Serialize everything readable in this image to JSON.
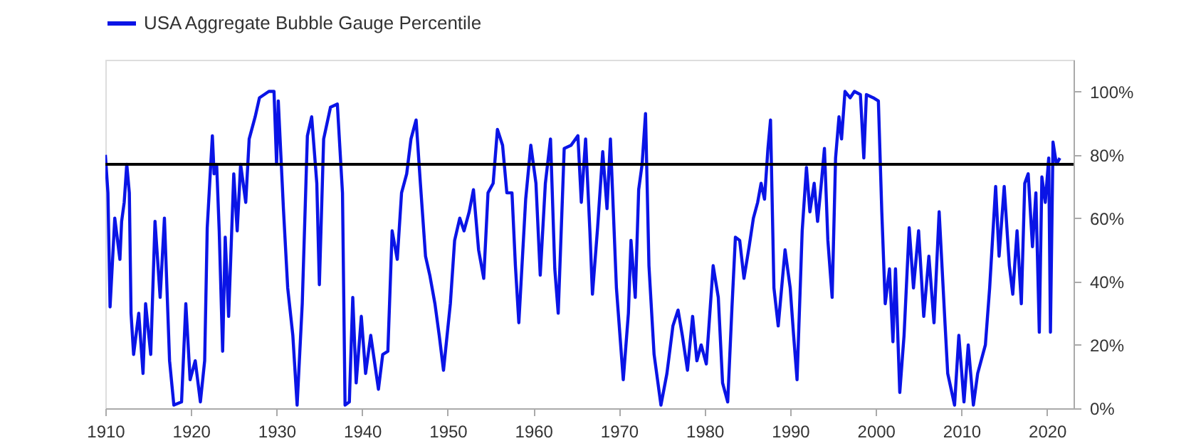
{
  "chart_data": {
    "type": "line",
    "xlim": [
      1910,
      2023.1
    ],
    "xticks": [
      1910,
      1920,
      1930,
      1940,
      1950,
      1960,
      1970,
      1980,
      1990,
      2000,
      2010,
      2020
    ],
    "ylim": [
      0,
      110
    ],
    "yticks": [
      {
        "value": 0,
        "label": "0%"
      },
      {
        "value": 20,
        "label": "20%"
      },
      {
        "value": 40,
        "label": "40%"
      },
      {
        "value": 60,
        "label": "60%"
      },
      {
        "value": 80,
        "label": "80%"
      },
      {
        "value": 100,
        "label": "100%"
      }
    ],
    "grid": false,
    "legend": "top",
    "line_style": "solid",
    "marker": "none",
    "ref_lines": [
      {
        "axis": "y",
        "value": 77,
        "label": null,
        "color": "#000000"
      }
    ],
    "series": [
      {
        "name": "USA Aggregate Bubble Gauge Percentile",
        "color": "#0a14e6",
        "x": [
          1910.0,
          1910.3,
          1910.55,
          1911.1,
          1911.7,
          1911.9,
          1912.2,
          1912.5,
          1912.8,
          1913.0,
          1913.3,
          1913.9,
          1914.4,
          1914.7,
          1915.3,
          1915.8,
          1916.4,
          1916.9,
          1917.5,
          1918.0,
          1918.9,
          1919.4,
          1919.9,
          1920.5,
          1921.1,
          1921.6,
          1921.9,
          1922.5,
          1922.7,
          1923.0,
          1923.3,
          1923.7,
          1924.0,
          1924.4,
          1925.0,
          1925.4,
          1925.8,
          1926.4,
          1926.8,
          1927.5,
          1928.0,
          1929.1,
          1929.7,
          1930.0,
          1930.2,
          1930.8,
          1931.3,
          1931.9,
          1932.4,
          1933.0,
          1933.6,
          1934.1,
          1934.7,
          1935.0,
          1935.5,
          1936.3,
          1937.1,
          1937.7,
          1938.0,
          1938.5,
          1938.9,
          1939.3,
          1939.9,
          1940.4,
          1941.0,
          1941.9,
          1942.4,
          1943.0,
          1943.5,
          1944.1,
          1944.6,
          1945.2,
          1945.7,
          1946.3,
          1946.8,
          1947.4,
          1947.9,
          1948.5,
          1949.0,
          1949.5,
          1950.3,
          1950.8,
          1951.4,
          1951.9,
          1952.5,
          1953.0,
          1953.6,
          1954.2,
          1954.7,
          1955.3,
          1955.8,
          1956.4,
          1956.9,
          1957.5,
          1957.9,
          1958.3,
          1959.1,
          1959.7,
          1960.3,
          1960.8,
          1961.4,
          1962.0,
          1962.5,
          1962.9,
          1963.6,
          1964.4,
          1965.2,
          1965.6,
          1966.1,
          1966.6,
          1966.9,
          1967.5,
          1968.1,
          1968.6,
          1969.0,
          1969.7,
          1970.5,
          1971.1,
          1971.4,
          1971.9,
          1972.3,
          1972.7,
          1973.1,
          1973.5,
          1974.1,
          1974.9,
          1975.6,
          1976.3,
          1976.9,
          1977.4,
          1978.0,
          1978.6,
          1979.1,
          1979.6,
          1980.2,
          1981.0,
          1981.6,
          1982.1,
          1982.7,
          1983.2,
          1983.6,
          1984.1,
          1984.6,
          1985.2,
          1985.7,
          1986.2,
          1986.6,
          1987.0,
          1987.4,
          1987.7,
          1988.1,
          1988.6,
          1989.4,
          1990.0,
          1990.4,
          1990.8,
          1991.4,
          1991.7,
          1991.9,
          1992.3,
          1992.8,
          1993.2,
          1993.6,
          1994.0,
          1994.4,
          1994.9,
          1995.3,
          1995.7,
          1996.0,
          1996.4,
          1997.0,
          1997.5,
          1998.2,
          1998.6,
          1998.9,
          1999.7,
          2000.3,
          2000.7,
          2001.1,
          2001.6,
          2002.0,
          2002.3,
          2002.8,
          2003.3,
          2003.9,
          2004.4,
          2005.0,
          2005.6,
          2006.2,
          2006.8,
          2007.4,
          2008.1,
          2008.4,
          2009.2,
          2009.7,
          2010.3,
          2010.8,
          2011.4,
          2011.9,
          2012.8,
          2013.3,
          2014.0,
          2014.4,
          2015.0,
          2015.6,
          2016.0,
          2016.5,
          2017.0,
          2017.4,
          2017.8,
          2018.3,
          2018.7,
          2019.1,
          2019.4,
          2019.8,
          2020.2,
          2020.4,
          2020.7,
          2021.1,
          2021.5
        ],
        "values": [
          80,
          68,
          32,
          60,
          47,
          59,
          65,
          77,
          68,
          30,
          17,
          30,
          11,
          33,
          17,
          59,
          35,
          60,
          15,
          1,
          2,
          33,
          9,
          15,
          2,
          15,
          57,
          86,
          74,
          77,
          56,
          18,
          54,
          29,
          74,
          56,
          77,
          65,
          85,
          92,
          98,
          100,
          100,
          77,
          97,
          63,
          38,
          23,
          1,
          33,
          86,
          92,
          71,
          39,
          85,
          95,
          96,
          68,
          1,
          2,
          35,
          8,
          29,
          11,
          23,
          6,
          17,
          18,
          56,
          47,
          68,
          74,
          85,
          91,
          71,
          48,
          42,
          33,
          23,
          12,
          33,
          53,
          60,
          56,
          62,
          69,
          50,
          41,
          68,
          71,
          88,
          83,
          68,
          68,
          45,
          27,
          66,
          83,
          71,
          42,
          71,
          85,
          44,
          30,
          82,
          83,
          86,
          65,
          85,
          56,
          36,
          57,
          81,
          63,
          85,
          38,
          9,
          30,
          53,
          35,
          69,
          77,
          93,
          45,
          17,
          1,
          11,
          26,
          31,
          23,
          12,
          29,
          15,
          20,
          14,
          45,
          35,
          8,
          2,
          32,
          54,
          53,
          41,
          51,
          60,
          65,
          71,
          66,
          82,
          91,
          38,
          26,
          50,
          38,
          23,
          9,
          56,
          68,
          76,
          62,
          71,
          59,
          70,
          82,
          53,
          35,
          79,
          92,
          85,
          100,
          98,
          100,
          99,
          79,
          99,
          98,
          97,
          62,
          33,
          44,
          21,
          44,
          5,
          23,
          57,
          38,
          56,
          29,
          48,
          27,
          62,
          26,
          11,
          1,
          23,
          2,
          20,
          1,
          11,
          20,
          38,
          70,
          48,
          70,
          45,
          36,
          56,
          33,
          71,
          74,
          51,
          68,
          24,
          73,
          65,
          79,
          24,
          84,
          77,
          79
        ]
      }
    ]
  }
}
